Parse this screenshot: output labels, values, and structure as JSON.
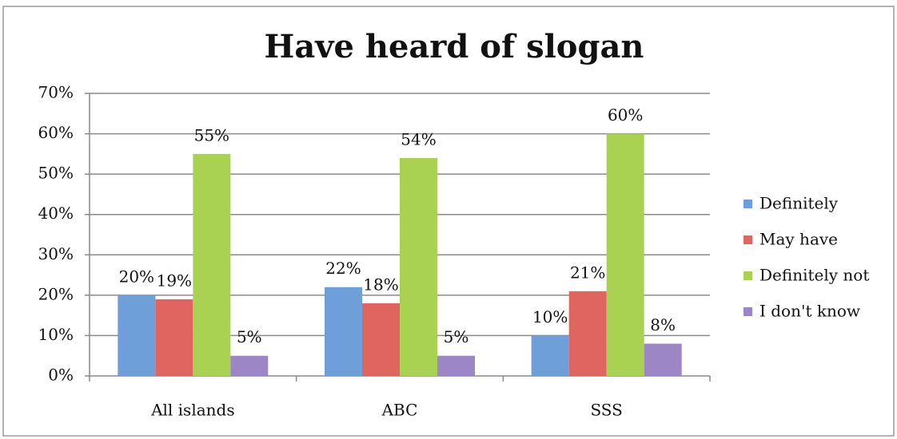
{
  "chart_data": {
    "type": "bar",
    "title": "Have heard of slogan",
    "categories": [
      "All islands",
      "ABC",
      "SSS"
    ],
    "series": [
      {
        "name": "Definitely",
        "color": "#6f9fd8",
        "values": [
          20,
          22,
          10
        ],
        "value_labels": [
          "20%",
          "22%",
          "10%"
        ]
      },
      {
        "name": "May have",
        "color": "#e06560",
        "values": [
          19,
          18,
          21
        ],
        "value_labels": [
          "19%",
          "18%",
          "21%"
        ]
      },
      {
        "name": "Definitely not",
        "color": "#a9d253",
        "values": [
          55,
          54,
          60
        ],
        "value_labels": [
          "55%",
          "54%",
          "60%"
        ]
      },
      {
        "name": "I don't know",
        "color": "#9c86c6",
        "values": [
          5,
          5,
          8
        ],
        "value_labels": [
          "5%",
          "5%",
          "8%"
        ]
      }
    ],
    "ylim": [
      0,
      70
    ],
    "yticks": [
      {
        "value": 0,
        "label": "0%"
      },
      {
        "value": 10,
        "label": "10%"
      },
      {
        "value": 20,
        "label": "20%"
      },
      {
        "value": 30,
        "label": "30%"
      },
      {
        "value": 40,
        "label": "40%"
      },
      {
        "value": 50,
        "label": "50%"
      },
      {
        "value": 60,
        "label": "60%"
      },
      {
        "value": 70,
        "label": "70%"
      }
    ],
    "grid": true,
    "legend": "right"
  }
}
